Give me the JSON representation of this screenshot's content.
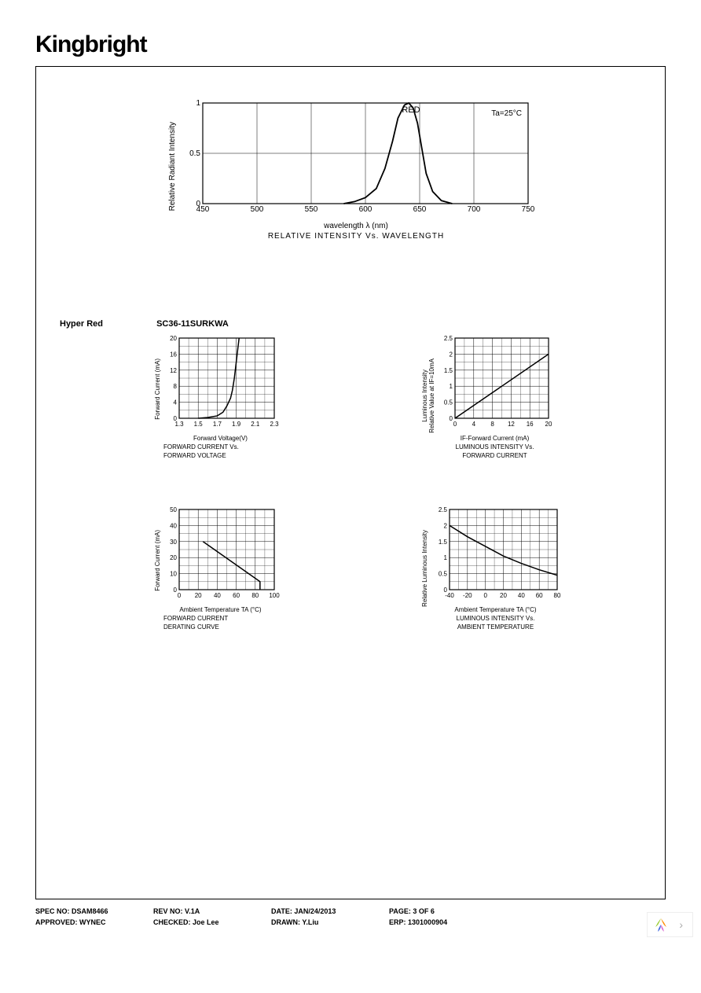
{
  "brand": "Kingbright",
  "product": {
    "color_name": "Hyper Red",
    "part_number": "SC36-11SURKWA"
  },
  "main_chart": {
    "type": "line",
    "title": "RELATIVE INTENSITY Vs. WAVELENGTH",
    "series_label": "RED",
    "annotation": "Ta=25°C",
    "xlabel": "wavelength λ  (nm)",
    "ylabel": "Relative Radiant Intensity",
    "xlim": [
      450,
      750
    ],
    "xtick_step": 50,
    "ylim": [
      0,
      1.0
    ],
    "yticks": [
      0,
      0.5,
      1.0
    ],
    "line_color": "#000000",
    "line_width": 1.5,
    "grid_color": "#000000",
    "data": [
      [
        580,
        0.0
      ],
      [
        590,
        0.02
      ],
      [
        600,
        0.06
      ],
      [
        610,
        0.15
      ],
      [
        618,
        0.35
      ],
      [
        625,
        0.62
      ],
      [
        630,
        0.85
      ],
      [
        636,
        0.98
      ],
      [
        640,
        1.0
      ],
      [
        644,
        0.95
      ],
      [
        648,
        0.8
      ],
      [
        652,
        0.55
      ],
      [
        656,
        0.3
      ],
      [
        662,
        0.12
      ],
      [
        670,
        0.03
      ],
      [
        680,
        0.0
      ]
    ]
  },
  "charts": {
    "fwd_iv": {
      "type": "line",
      "title1": "FORWARD CURRENT Vs.",
      "title2": "FORWARD VOLTAGE",
      "xlabel": "Forward Voltage(V)",
      "ylabel": "Forward Current (mA)",
      "xlim": [
        1.3,
        2.3
      ],
      "xtick_step": 0.2,
      "ylim": [
        0,
        20
      ],
      "ytick_step": 4,
      "line_color": "#000000",
      "data": [
        [
          1.5,
          0.0
        ],
        [
          1.6,
          0.2
        ],
        [
          1.7,
          0.6
        ],
        [
          1.76,
          1.5
        ],
        [
          1.8,
          3.0
        ],
        [
          1.84,
          5.0
        ],
        [
          1.86,
          7.0
        ],
        [
          1.88,
          10.0
        ],
        [
          1.9,
          14.0
        ],
        [
          1.92,
          18.0
        ],
        [
          1.93,
          20.0
        ]
      ]
    },
    "lum_if": {
      "type": "line",
      "title1": "LUMINOUS INTENSITY Vs.",
      "title2": "FORWARD CURRENT",
      "xlabel": "IF-Forward Current (mA)",
      "ylabel": "Luminous Intensity\nRelative Value at IF=10mA",
      "xlim": [
        0,
        20
      ],
      "xtick_step": 4,
      "ylim": [
        0,
        2.5
      ],
      "ytick_step": 0.5,
      "line_color": "#000000",
      "data": [
        [
          0,
          0.0
        ],
        [
          20,
          2.0
        ]
      ]
    },
    "derating": {
      "type": "line",
      "title1": "FORWARD CURRENT",
      "title2": "DERATING CURVE",
      "xlabel": "Ambient Temperature TA (°C)",
      "ylabel": "Forward Current (mA)",
      "xlim": [
        0,
        100
      ],
      "xtick_step": 20,
      "ylim": [
        0,
        50
      ],
      "ytick_step": 10,
      "line_color": "#000000",
      "data": [
        [
          25,
          30
        ],
        [
          85,
          5
        ],
        [
          85,
          0
        ]
      ]
    },
    "lum_temp": {
      "type": "line",
      "title1": "LUMINOUS INTENSITY Vs.",
      "title2": "AMBIENT TEMPERATURE",
      "xlabel": "Ambient Temperature TA (°C)",
      "ylabel": "Relative Luminous Intensity",
      "xlim": [
        -40,
        80
      ],
      "xtick_step": 20,
      "ylim": [
        0,
        2.5
      ],
      "ytick_step": 0.5,
      "line_color": "#000000",
      "data": [
        [
          -40,
          2.0
        ],
        [
          -20,
          1.65
        ],
        [
          0,
          1.35
        ],
        [
          20,
          1.05
        ],
        [
          40,
          0.82
        ],
        [
          60,
          0.62
        ],
        [
          80,
          0.45
        ]
      ]
    }
  },
  "footer": {
    "spec_no_label": "SPEC NO:",
    "spec_no": "DSAM8466",
    "rev_no_label": "REV NO:",
    "rev_no": "V.1A",
    "date_label": "DATE:",
    "date": "JAN/24/2013",
    "page_label": "PAGE:",
    "page": "3 OF 6",
    "approved_label": "APPROVED:",
    "approved": "WYNEC",
    "checked_label": "CHECKED:",
    "checked": "Joe Lee",
    "drawn_label": "DRAWN:",
    "drawn": "Y.Liu",
    "erp_label": "ERP:",
    "erp": "1301000904"
  },
  "chart_style": {
    "width_main": 450,
    "height_main": 150,
    "width_small": 145,
    "height_small": 120,
    "border_color": "#000000",
    "background": "#ffffff",
    "tick_fontsize": 8,
    "label_fontsize": 8
  }
}
